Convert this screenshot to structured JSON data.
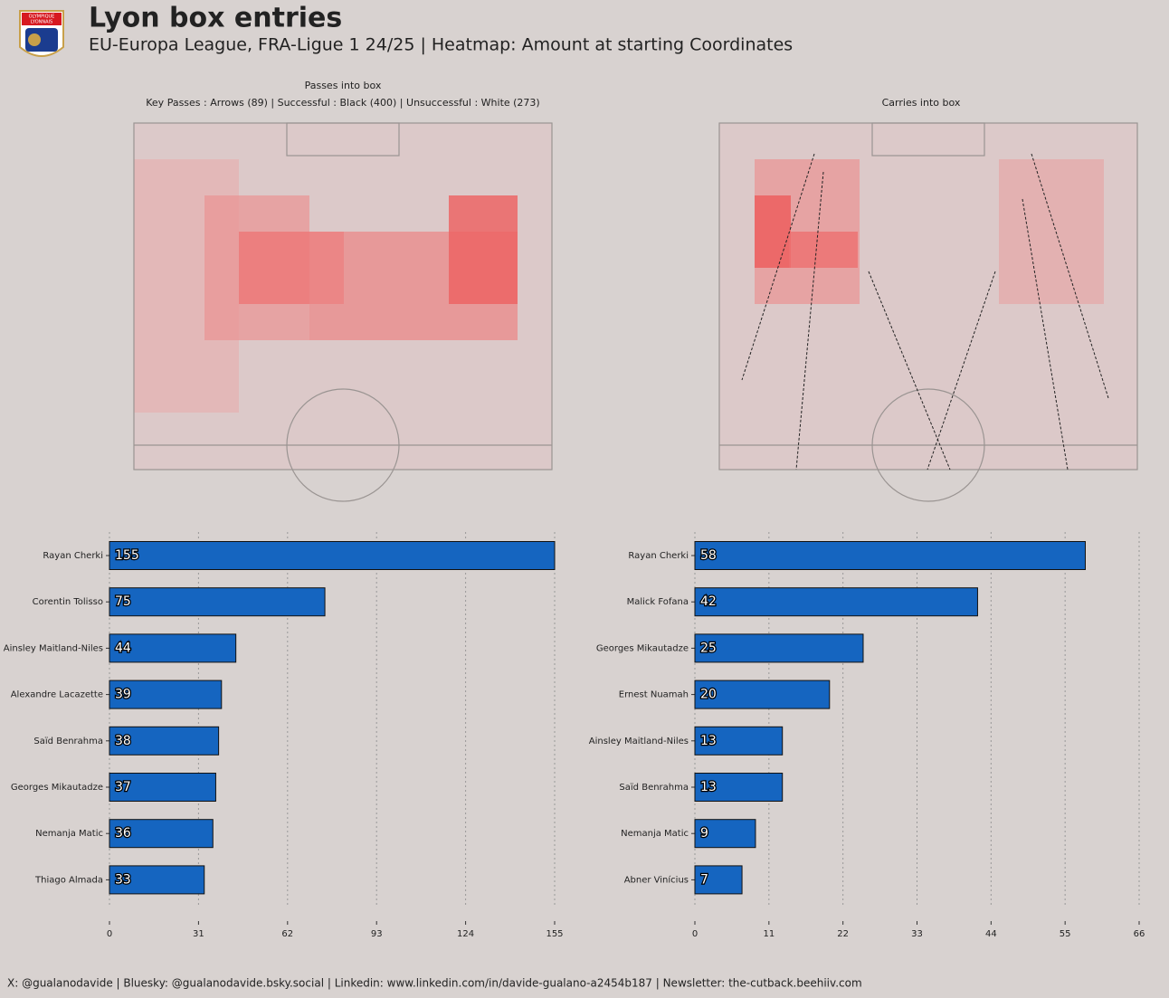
{
  "header": {
    "title": "Lyon box entries",
    "subtitle": "EU-Europa League, FRA-Ligue 1 24/25  |  Heatmap: Amount at starting Coordinates",
    "logo_text": [
      "OLYMPIQUE",
      "LYONNAIS"
    ]
  },
  "pitches": [
    {
      "title": "Passes into box",
      "subtitle": "Key Passes : Arrows (89)  |  Successful : Black (400)  |  Unsuccessful : White (273)"
    },
    {
      "title": "Carries into box"
    }
  ],
  "chart_data": [
    {
      "type": "barh",
      "categories": [
        "Rayan Cherki",
        "Corentin Tolisso",
        "Ainsley Maitland-Niles",
        "Alexandre Lacazette",
        "Saïd Benrahma",
        "Georges Mikautadze",
        "Nemanja Matic",
        "Thiago Almada"
      ],
      "values": [
        155,
        75,
        44,
        39,
        38,
        37,
        36,
        33
      ],
      "color": "#1565c0",
      "xlim": [
        0,
        155
      ],
      "xticks": [
        0,
        31,
        62,
        93,
        124,
        155
      ],
      "grid": true
    },
    {
      "type": "barh",
      "categories": [
        "Rayan Cherki",
        "Malick Fofana",
        "Georges Mikautadze",
        "Ernest Nuamah",
        "Ainsley Maitland-Niles",
        "Saïd Benrahma",
        "Nemanja Matic",
        "Abner Vinícius"
      ],
      "values": [
        58,
        42,
        25,
        20,
        13,
        13,
        9,
        7
      ],
      "color": "#1565c0",
      "xlim": [
        0,
        66
      ],
      "xticks": [
        0,
        11,
        22,
        33,
        44,
        55,
        66
      ],
      "grid": true
    }
  ],
  "footer": "X: @gualanodavide | Bluesky: @gualanodavide.bsky.social | Linkedin: www.linkedin.com/in/davide-gualano-a2454b187 | Newsletter: the-cutback.beehiiv.com"
}
